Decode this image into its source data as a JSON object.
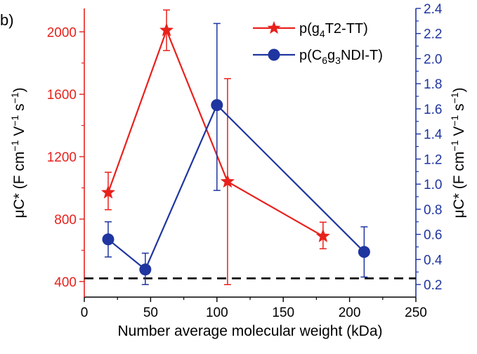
{
  "chart_data": {
    "type": "scatter",
    "panel_label": "b)",
    "xlabel": "Number average molecular weight (kDa)",
    "ylabel_left": {
      "prefix": "μC* (F cm",
      "sup1": "−1",
      "mid": " V",
      "sup2": "−1",
      "mid2": " s",
      "sup3": "−1",
      "suffix": ")"
    },
    "ylabel_right": {
      "prefix": "μC* (F cm",
      "sup1": "−1",
      "mid": " V",
      "sup2": "−1",
      "mid2": " s",
      "sup3": "−1",
      "suffix": ")"
    },
    "xlim": [
      0,
      250
    ],
    "xticks": [
      0,
      50,
      100,
      150,
      200,
      250
    ],
    "ylim_left": [
      300,
      2150
    ],
    "yticks_left": [
      400,
      800,
      1200,
      1600,
      2000
    ],
    "ylim_right": [
      0.1,
      2.4
    ],
    "yticks_right": [
      0.2,
      0.4,
      0.6,
      0.8,
      1.0,
      1.2,
      1.4,
      1.6,
      1.8,
      2.0,
      2.2,
      2.4
    ],
    "colors": {
      "left_axis": "#e8211c",
      "right_axis": "#1f35a0",
      "reference": "#000000"
    },
    "reference_line": {
      "y_left": 420,
      "style": "dashed"
    },
    "series": [
      {
        "name": "p(g4T2-TT)",
        "legend": {
          "base": "p(g",
          "sub": "4",
          "rest": "T2-TT)"
        },
        "axis": "left",
        "marker": "star",
        "color": "#e8211c",
        "points": [
          {
            "x": 18,
            "y": 970,
            "err_low": 860,
            "err_high": 1100
          },
          {
            "x": 62,
            "y": 2010,
            "err_low": 1880,
            "err_high": 2140
          },
          {
            "x": 108,
            "y": 1040,
            "err_low": 380,
            "err_high": 1700
          },
          {
            "x": 180,
            "y": 690,
            "err_low": 610,
            "err_high": 780
          }
        ]
      },
      {
        "name": "p(C6g3NDI-T)",
        "legend": {
          "base": "p(C",
          "sub": "6",
          "mid": "g",
          "sub2": "3",
          "rest": "NDI-T)"
        },
        "axis": "right",
        "marker": "circle",
        "color": "#1f35a0",
        "points": [
          {
            "x": 18,
            "y": 0.56,
            "err_low": 0.42,
            "err_high": 0.7
          },
          {
            "x": 46,
            "y": 0.32,
            "err_low": 0.2,
            "err_high": 0.45
          },
          {
            "x": 100,
            "y": 1.63,
            "err_low": 0.95,
            "err_high": 2.28
          },
          {
            "x": 211,
            "y": 0.46,
            "err_low": 0.26,
            "err_high": 0.66
          }
        ]
      }
    ]
  }
}
